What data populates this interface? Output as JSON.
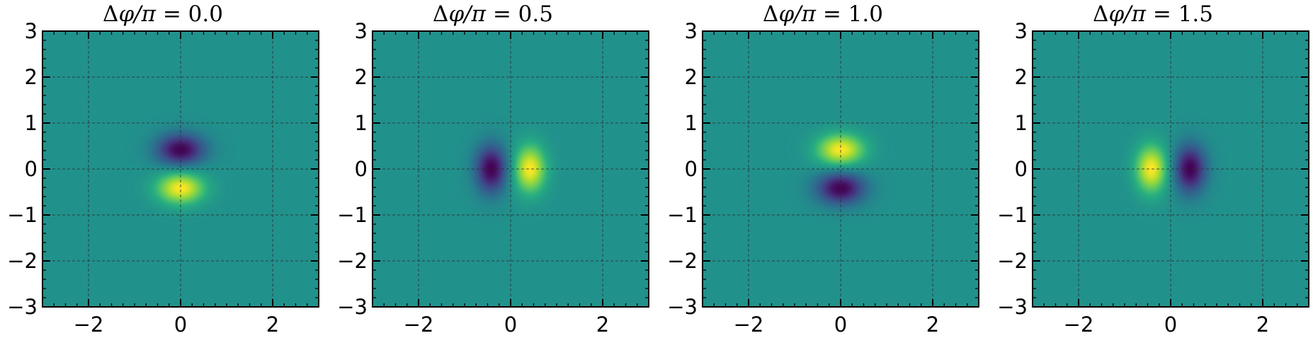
{
  "chart_data": [
    {
      "type": "heatmap",
      "title": "Δφ/π = 0.0",
      "title_prefix": "Δ",
      "title_var": "φ/π",
      "title_rest": " = 0.0",
      "xlim": [
        -3,
        3
      ],
      "ylim": [
        -3,
        3
      ],
      "xticks": [
        -2,
        0,
        2
      ],
      "yticks": [
        -3,
        -2,
        -1,
        0,
        1,
        2,
        3
      ],
      "xticklabels": [
        "−2",
        "0",
        "2"
      ],
      "yticklabels": [
        "−3",
        "−2",
        "−1",
        "0",
        "1",
        "2",
        "3"
      ],
      "grid": true,
      "colormap": "viridis",
      "delta_phi_over_pi": 0.0,
      "blobs": [
        {
          "x": 0,
          "y": 0.42,
          "sign": -1
        },
        {
          "x": 0,
          "y": -0.42,
          "sign": 1
        }
      ]
    },
    {
      "type": "heatmap",
      "title": "Δφ/π = 0.5",
      "title_prefix": "Δ",
      "title_var": "φ/π",
      "title_rest": " = 0.5",
      "xlim": [
        -3,
        3
      ],
      "ylim": [
        -3,
        3
      ],
      "xticks": [
        -2,
        0,
        2
      ],
      "yticks": [
        -3,
        -2,
        -1,
        0,
        1,
        2,
        3
      ],
      "xticklabels": [
        "−2",
        "0",
        "2"
      ],
      "yticklabels": [
        "−3",
        "−2",
        "−1",
        "0",
        "1",
        "2",
        "3"
      ],
      "grid": true,
      "colormap": "viridis",
      "delta_phi_over_pi": 0.5,
      "blobs": [
        {
          "x": -0.42,
          "y": 0,
          "sign": -1
        },
        {
          "x": 0.42,
          "y": 0,
          "sign": 1
        }
      ]
    },
    {
      "type": "heatmap",
      "title": "Δφ/π = 1.0",
      "title_prefix": "Δ",
      "title_var": "φ/π",
      "title_rest": " = 1.0",
      "xlim": [
        -3,
        3
      ],
      "ylim": [
        -3,
        3
      ],
      "xticks": [
        -2,
        0,
        2
      ],
      "yticks": [
        -3,
        -2,
        -1,
        0,
        1,
        2,
        3
      ],
      "xticklabels": [
        "−2",
        "0",
        "2"
      ],
      "yticklabels": [
        "−3",
        "−2",
        "−1",
        "0",
        "1",
        "2",
        "3"
      ],
      "grid": true,
      "colormap": "viridis",
      "delta_phi_over_pi": 1.0,
      "blobs": [
        {
          "x": 0,
          "y": 0.42,
          "sign": 1
        },
        {
          "x": 0,
          "y": -0.42,
          "sign": -1
        }
      ]
    },
    {
      "type": "heatmap",
      "title": "Δφ/π = 1.5",
      "title_prefix": "Δ",
      "title_var": "φ/π",
      "title_rest": " = 1.5",
      "xlim": [
        -3,
        3
      ],
      "ylim": [
        -3,
        3
      ],
      "xticks": [
        -2,
        0,
        2
      ],
      "yticks": [
        -3,
        -2,
        -1,
        0,
        1,
        2,
        3
      ],
      "xticklabels": [
        "−2",
        "0",
        "2"
      ],
      "yticklabels": [
        "−3",
        "−2",
        "−1",
        "0",
        "1",
        "2",
        "3"
      ],
      "grid": true,
      "colormap": "viridis",
      "delta_phi_over_pi": 1.5,
      "blobs": [
        {
          "x": -0.42,
          "y": 0,
          "sign": 1
        },
        {
          "x": 0.42,
          "y": 0,
          "sign": -1
        }
      ]
    }
  ],
  "colors": {
    "background_mid": "#21918c",
    "positive_peak": "#fde725",
    "negative_peak": "#440154",
    "frame": "#000000",
    "grid": "#2a2a2a"
  }
}
